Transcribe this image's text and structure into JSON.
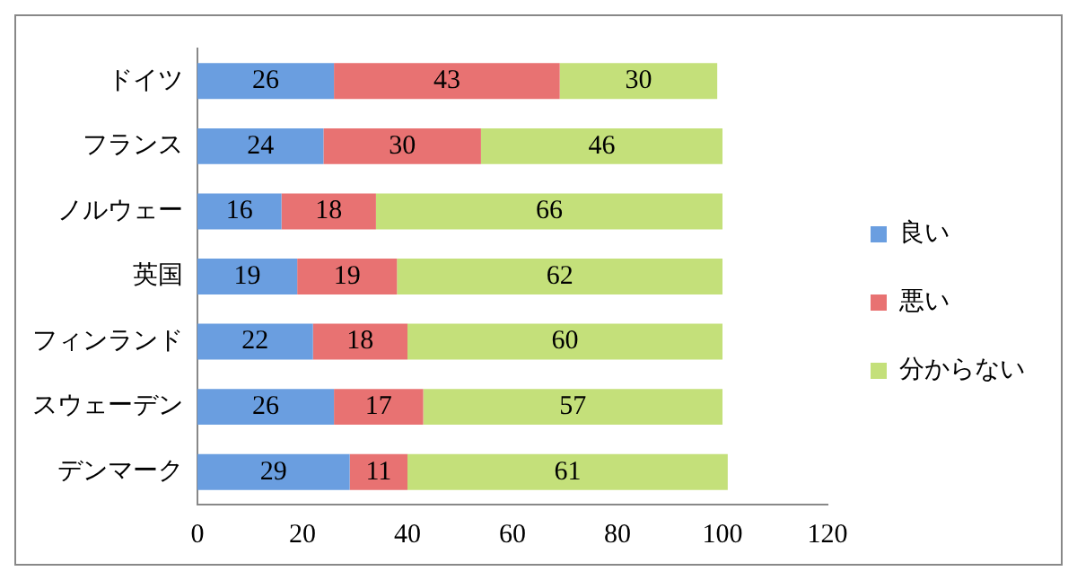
{
  "chart_data": {
    "type": "bar",
    "orientation": "horizontal",
    "stacked": true,
    "categories": [
      "ドイツ",
      "フランス",
      "ノルウェー",
      "英国",
      "フィンランド",
      "スウェーデン",
      "デンマーク"
    ],
    "series": [
      {
        "name": "良い",
        "color": "#6a9ee0",
        "values": [
          26,
          24,
          16,
          19,
          22,
          26,
          29
        ]
      },
      {
        "name": "悪い",
        "color": "#e87272",
        "values": [
          43,
          30,
          18,
          19,
          18,
          17,
          11
        ]
      },
      {
        "name": "分からない",
        "color": "#c4e07a",
        "values": [
          30,
          46,
          66,
          62,
          60,
          57,
          61
        ]
      }
    ],
    "xlim": [
      0,
      120
    ],
    "xticks": [
      0,
      20,
      40,
      60,
      80,
      100,
      120
    ],
    "grid": false,
    "legend": "right",
    "data_labels": true
  }
}
